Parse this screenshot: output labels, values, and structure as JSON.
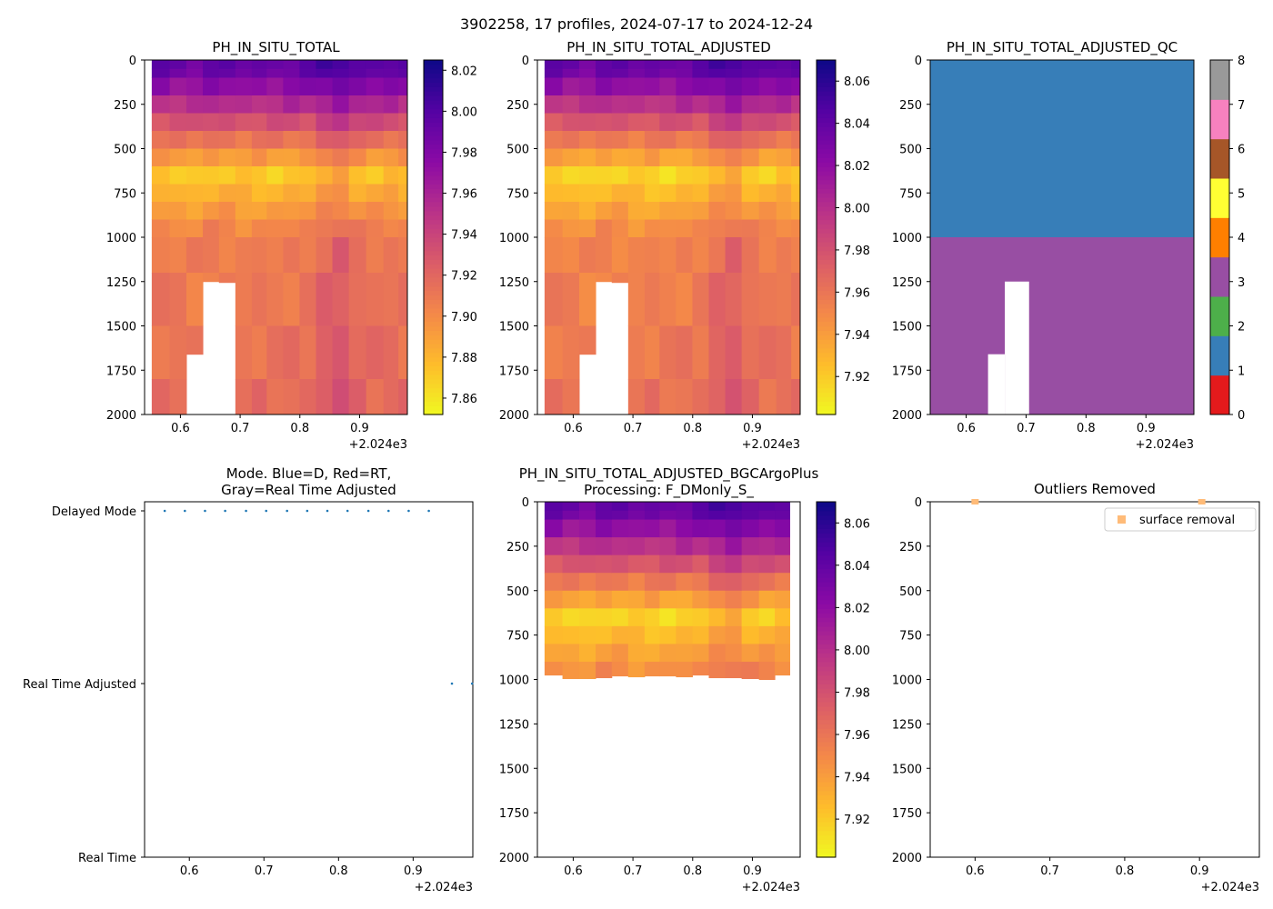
{
  "figure": {
    "title": "3902258, 17 profiles, 2024-07-17 to 2024-12-24"
  },
  "chart_data": [
    {
      "id": "p1",
      "type": "heatmap",
      "title": "PH_IN_SITU_TOTAL",
      "xlim": [
        0.54,
        0.98
      ],
      "ylim": [
        2000,
        0
      ],
      "x_ticks": [
        0.6,
        0.7,
        0.8,
        0.9
      ],
      "x_tick_labels": [
        "0.6",
        "0.7",
        "0.8",
        "0.9"
      ],
      "x_offset_label": "+2.024e3",
      "y_ticks": [
        0,
        250,
        500,
        750,
        1000,
        1250,
        1500,
        1750,
        2000
      ],
      "y_tick_labels": [
        "0",
        "250",
        "500",
        "750",
        "1000",
        "1250",
        "1500",
        "1750",
        "2000"
      ],
      "colormap": "plasma_r",
      "clim": [
        7.852,
        8.025
      ],
      "colorbar_ticks": [
        7.86,
        7.88,
        7.9,
        7.92,
        7.94,
        7.96,
        7.98,
        8.0,
        8.02
      ],
      "colorbar_tick_labels": [
        "7.86",
        "7.88",
        "7.90",
        "7.92",
        "7.94",
        "7.96",
        "7.98",
        "8.00",
        "8.02"
      ],
      "profile_x": [
        0.567,
        0.597,
        0.623,
        0.652,
        0.677,
        0.707,
        0.732,
        0.757,
        0.787,
        0.812,
        0.842,
        0.867,
        0.897,
        0.925,
        0.955,
        0.975
      ],
      "max_depth": [
        2000,
        2000,
        1660,
        1250,
        1255,
        2000,
        2000,
        2000,
        2000,
        2000,
        2000,
        2000,
        2000,
        2000,
        2000,
        2000
      ],
      "layer_depths": [
        0,
        50,
        100,
        200,
        300,
        400,
        500,
        600,
        700,
        800,
        900,
        1000,
        1200,
        1500,
        1800,
        2000
      ],
      "surface_ph": [
        7.995,
        7.993,
        7.992,
        7.996,
        7.995,
        7.993,
        7.994,
        7.993,
        7.995,
        7.996,
        8.005,
        8.01,
        8.0,
        7.997,
        7.998,
        7.996
      ],
      "value_offset": 0.0
    },
    {
      "id": "p2",
      "type": "heatmap",
      "title": "PH_IN_SITU_TOTAL_ADJUSTED",
      "xlim": [
        0.54,
        0.98
      ],
      "ylim": [
        2000,
        0
      ],
      "x_ticks": [
        0.6,
        0.7,
        0.8,
        0.9
      ],
      "x_tick_labels": [
        "0.6",
        "0.7",
        "0.8",
        "0.9"
      ],
      "x_offset_label": "+2.024e3",
      "y_ticks": [
        0,
        250,
        500,
        750,
        1000,
        1250,
        1500,
        1750,
        2000
      ],
      "y_tick_labels": [
        "0",
        "250",
        "500",
        "750",
        "1000",
        "1250",
        "1500",
        "1750",
        "2000"
      ],
      "colormap": "plasma_r",
      "clim": [
        7.902,
        8.07
      ],
      "colorbar_ticks": [
        7.92,
        7.94,
        7.96,
        7.98,
        8.0,
        8.02,
        8.04,
        8.06
      ],
      "colorbar_tick_labels": [
        "7.92",
        "7.94",
        "7.96",
        "7.98",
        "8.00",
        "8.02",
        "8.04",
        "8.06"
      ],
      "profile_x": [
        0.567,
        0.597,
        0.623,
        0.652,
        0.677,
        0.707,
        0.732,
        0.757,
        0.787,
        0.812,
        0.842,
        0.867,
        0.897,
        0.925,
        0.955,
        0.975
      ],
      "max_depth": [
        2000,
        2000,
        1660,
        1250,
        1255,
        2000,
        2000,
        2000,
        2000,
        2000,
        2000,
        2000,
        2000,
        2000,
        2000,
        2000
      ],
      "layer_depths": [
        0,
        50,
        100,
        200,
        300,
        400,
        500,
        600,
        700,
        800,
        900,
        1000,
        1200,
        1500,
        1800,
        2000
      ],
      "surface_ph": [
        7.995,
        7.993,
        7.992,
        7.996,
        7.995,
        7.993,
        7.994,
        7.993,
        7.995,
        7.996,
        8.005,
        8.01,
        8.0,
        7.997,
        7.998,
        7.996
      ],
      "value_offset": 0.045
    },
    {
      "id": "p3",
      "type": "heatmap",
      "title": "PH_IN_SITU_TOTAL_ADJUSTED_QC",
      "xlim": [
        0.54,
        0.98
      ],
      "ylim": [
        2000,
        0
      ],
      "x_ticks": [
        0.6,
        0.7,
        0.8,
        0.9
      ],
      "x_tick_labels": [
        "0.6",
        "0.7",
        "0.8",
        "0.9"
      ],
      "x_offset_label": "+2.024e3",
      "y_ticks": [
        0,
        250,
        500,
        750,
        1000,
        1250,
        1500,
        1750,
        2000
      ],
      "y_tick_labels": [
        "0",
        "250",
        "500",
        "750",
        "1000",
        "1250",
        "1500",
        "1750",
        "2000"
      ],
      "qc_boundary_depth": 1000,
      "qc_above": 1,
      "qc_below": 3,
      "colorbar_ticks": [
        0,
        1,
        2,
        3,
        4,
        5,
        6,
        7,
        8
      ],
      "colorbar_tick_labels": [
        "0",
        "1",
        "2",
        "3",
        "4",
        "5",
        "6",
        "7",
        "8"
      ],
      "qc_colors": [
        "#e41a1c",
        "#377eb8",
        "#4daf4a",
        "#984ea3",
        "#ff7f00",
        "#ffff33",
        "#a65628",
        "#f781bf",
        "#999999"
      ]
    },
    {
      "id": "p4",
      "type": "scatter",
      "title": "Mode. Blue=D, Red=RT,",
      "title2": "Gray=Real Time Adjusted",
      "xlim": [
        0.54,
        0.98
      ],
      "x_ticks": [
        0.6,
        0.7,
        0.8,
        0.9
      ],
      "x_tick_labels": [
        "0.6",
        "0.7",
        "0.8",
        "0.9"
      ],
      "x_offset_label": "+2.024e3",
      "y_tick_labels": [
        "Real Time",
        "Real Time Adjusted",
        "Delayed Mode"
      ],
      "x": [
        0.567,
        0.594,
        0.621,
        0.648,
        0.676,
        0.703,
        0.731,
        0.758,
        0.785,
        0.812,
        0.84,
        0.867,
        0.894,
        0.921,
        0.952,
        0.979
      ],
      "y": [
        2,
        2,
        2,
        2,
        2,
        2,
        2,
        2,
        2,
        2,
        2,
        2,
        2,
        2,
        1,
        1
      ],
      "color": "#1f77b4"
    },
    {
      "id": "p5",
      "type": "heatmap",
      "title": "PH_IN_SITU_TOTAL_ADJUSTED_BGCArgoPlus",
      "title2": "Processing: F_DMonly_S_",
      "xlim": [
        0.54,
        0.98
      ],
      "ylim": [
        2000,
        0
      ],
      "x_ticks": [
        0.6,
        0.7,
        0.8,
        0.9
      ],
      "x_tick_labels": [
        "0.6",
        "0.7",
        "0.8",
        "0.9"
      ],
      "x_offset_label": "+2.024e3",
      "y_ticks": [
        0,
        250,
        500,
        750,
        1000,
        1250,
        1500,
        1750,
        2000
      ],
      "y_tick_labels": [
        "0",
        "250",
        "500",
        "750",
        "1000",
        "1250",
        "1500",
        "1750",
        "2000"
      ],
      "colormap": "plasma_r",
      "clim": [
        7.902,
        8.07
      ],
      "colorbar_ticks": [
        7.92,
        7.94,
        7.96,
        7.98,
        8.0,
        8.02,
        8.04,
        8.06
      ],
      "colorbar_tick_labels": [
        "7.92",
        "7.94",
        "7.96",
        "7.98",
        "8.00",
        "8.02",
        "8.04",
        "8.06"
      ],
      "profile_x": [
        0.567,
        0.597,
        0.623,
        0.652,
        0.677,
        0.707,
        0.732,
        0.757,
        0.787,
        0.812,
        0.842,
        0.867,
        0.897,
        0.925,
        0.95
      ],
      "max_depth": [
        975,
        995,
        995,
        990,
        980,
        985,
        980,
        980,
        985,
        975,
        990,
        990,
        995,
        1000,
        975
      ],
      "layer_depths": [
        0,
        50,
        100,
        200,
        300,
        400,
        500,
        600,
        700,
        800,
        900,
        1000
      ],
      "surface_ph": [
        7.995,
        7.993,
        7.992,
        7.996,
        7.995,
        7.993,
        7.994,
        7.993,
        7.995,
        7.996,
        8.005,
        8.01,
        8.0,
        7.997,
        7.998
      ],
      "value_offset": 0.045
    },
    {
      "id": "p6",
      "type": "scatter",
      "title": "Outliers Removed",
      "xlim": [
        0.54,
        0.98
      ],
      "ylim": [
        2000,
        0
      ],
      "x_ticks": [
        0.6,
        0.7,
        0.8,
        0.9
      ],
      "x_tick_labels": [
        "0.6",
        "0.7",
        "0.8",
        "0.9"
      ],
      "x_offset_label": "+2.024e3",
      "y_ticks": [
        0,
        250,
        500,
        750,
        1000,
        1250,
        1500,
        1750,
        2000
      ],
      "y_tick_labels": [
        "0",
        "250",
        "500",
        "750",
        "1000",
        "1250",
        "1500",
        "1750",
        "2000"
      ],
      "series": [
        {
          "name": "surface removal",
          "x": [
            0.6,
            0.903
          ],
          "y": [
            0,
            0
          ],
          "color": "#ffbb78"
        }
      ],
      "legend_location": "top-right"
    }
  ]
}
